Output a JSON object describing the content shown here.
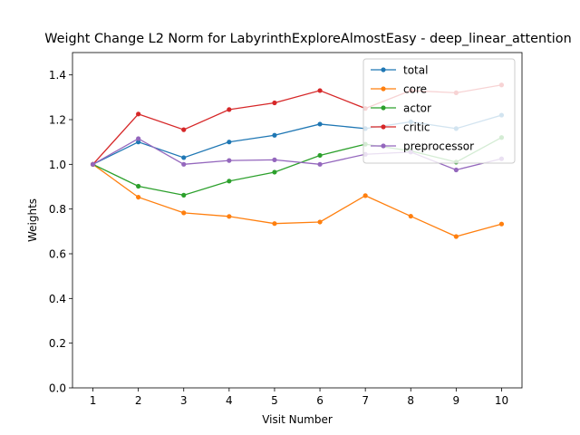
{
  "chart_data": {
    "type": "line",
    "title": "Weight Change L2 Norm for LabyrinthExploreAlmostEasy - deep_linear_attention",
    "xlabel": "Visit Number",
    "ylabel": "Weights",
    "x": [
      1,
      2,
      3,
      4,
      5,
      6,
      7,
      8,
      9,
      10
    ],
    "xticks": [
      "1",
      "2",
      "3",
      "4",
      "5",
      "6",
      "7",
      "8",
      "9",
      "10"
    ],
    "yticks": [
      "0.0",
      "0.2",
      "0.4",
      "0.6",
      "0.8",
      "1.0",
      "1.2",
      "1.4"
    ],
    "xlim": [
      0.55,
      10.45
    ],
    "ylim": [
      0,
      1.5
    ],
    "grid": false,
    "legend_position": "top-right",
    "series": [
      {
        "name": "total",
        "color": "#1f77b4",
        "values": [
          1.0,
          1.1,
          1.03,
          1.1,
          1.13,
          1.18,
          1.16,
          1.19,
          1.16,
          1.22
        ]
      },
      {
        "name": "core",
        "color": "#ff7f0e",
        "values": [
          1.0,
          0.853,
          0.783,
          0.767,
          0.735,
          0.742,
          0.86,
          0.768,
          0.677,
          0.733
        ]
      },
      {
        "name": "actor",
        "color": "#2ca02c",
        "values": [
          1.0,
          0.902,
          0.862,
          0.925,
          0.965,
          1.04,
          1.09,
          1.06,
          1.01,
          1.12
        ]
      },
      {
        "name": "critic",
        "color": "#d62728",
        "values": [
          1.0,
          1.225,
          1.155,
          1.245,
          1.275,
          1.33,
          1.25,
          1.33,
          1.32,
          1.355
        ]
      },
      {
        "name": "preprocessor",
        "color": "#9467bd",
        "values": [
          1.0,
          1.115,
          1.0,
          1.017,
          1.02,
          1.0,
          1.045,
          1.055,
          0.975,
          1.025
        ]
      }
    ]
  }
}
